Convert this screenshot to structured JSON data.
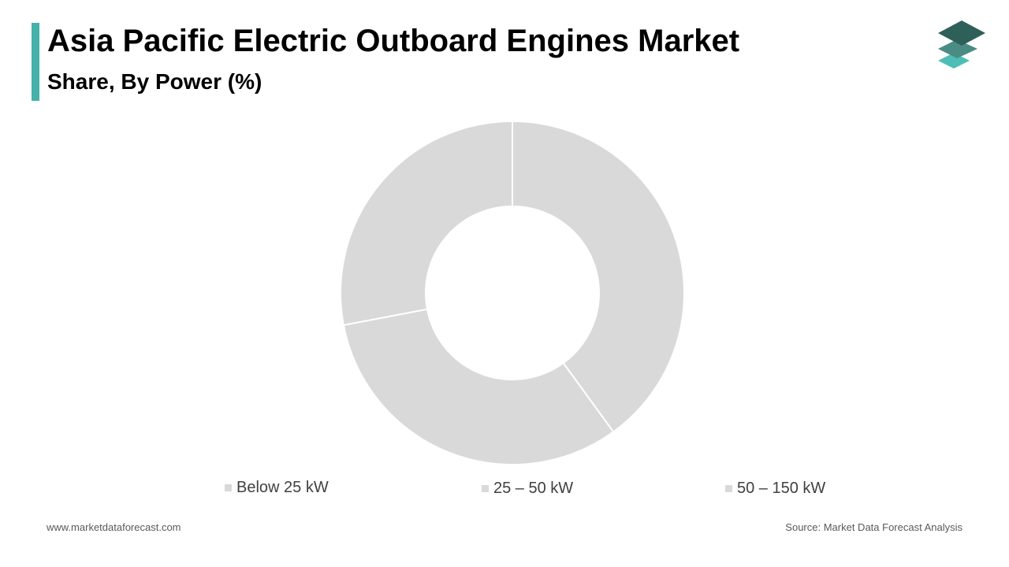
{
  "header": {
    "title": "Asia Pacific Electric Outboard Engines Market",
    "subtitle": "Share, By Power (%)"
  },
  "colors": {
    "accent": "#45B1AB",
    "slice": "#D9D9D9",
    "logo_top": "#2F5F59",
    "logo_mid": "#4A8C84",
    "logo_bottom": "#4DBDB6"
  },
  "logo": {
    "icon": "stacked-layers-icon"
  },
  "chart_data": {
    "type": "pie",
    "title": "Asia Pacific Electric Outboard Engines Market",
    "subtitle": "Share, By Power (%)",
    "categories": [
      "Below 25 kW",
      "25 – 50 kW",
      "50 – 150 kW"
    ],
    "values": [
      40,
      32,
      28
    ],
    "donut": true,
    "legend_position": "bottom"
  },
  "footer": {
    "website": "www.marketdataforecast.com",
    "source": "Source: Market Data Forecast Analysis"
  }
}
